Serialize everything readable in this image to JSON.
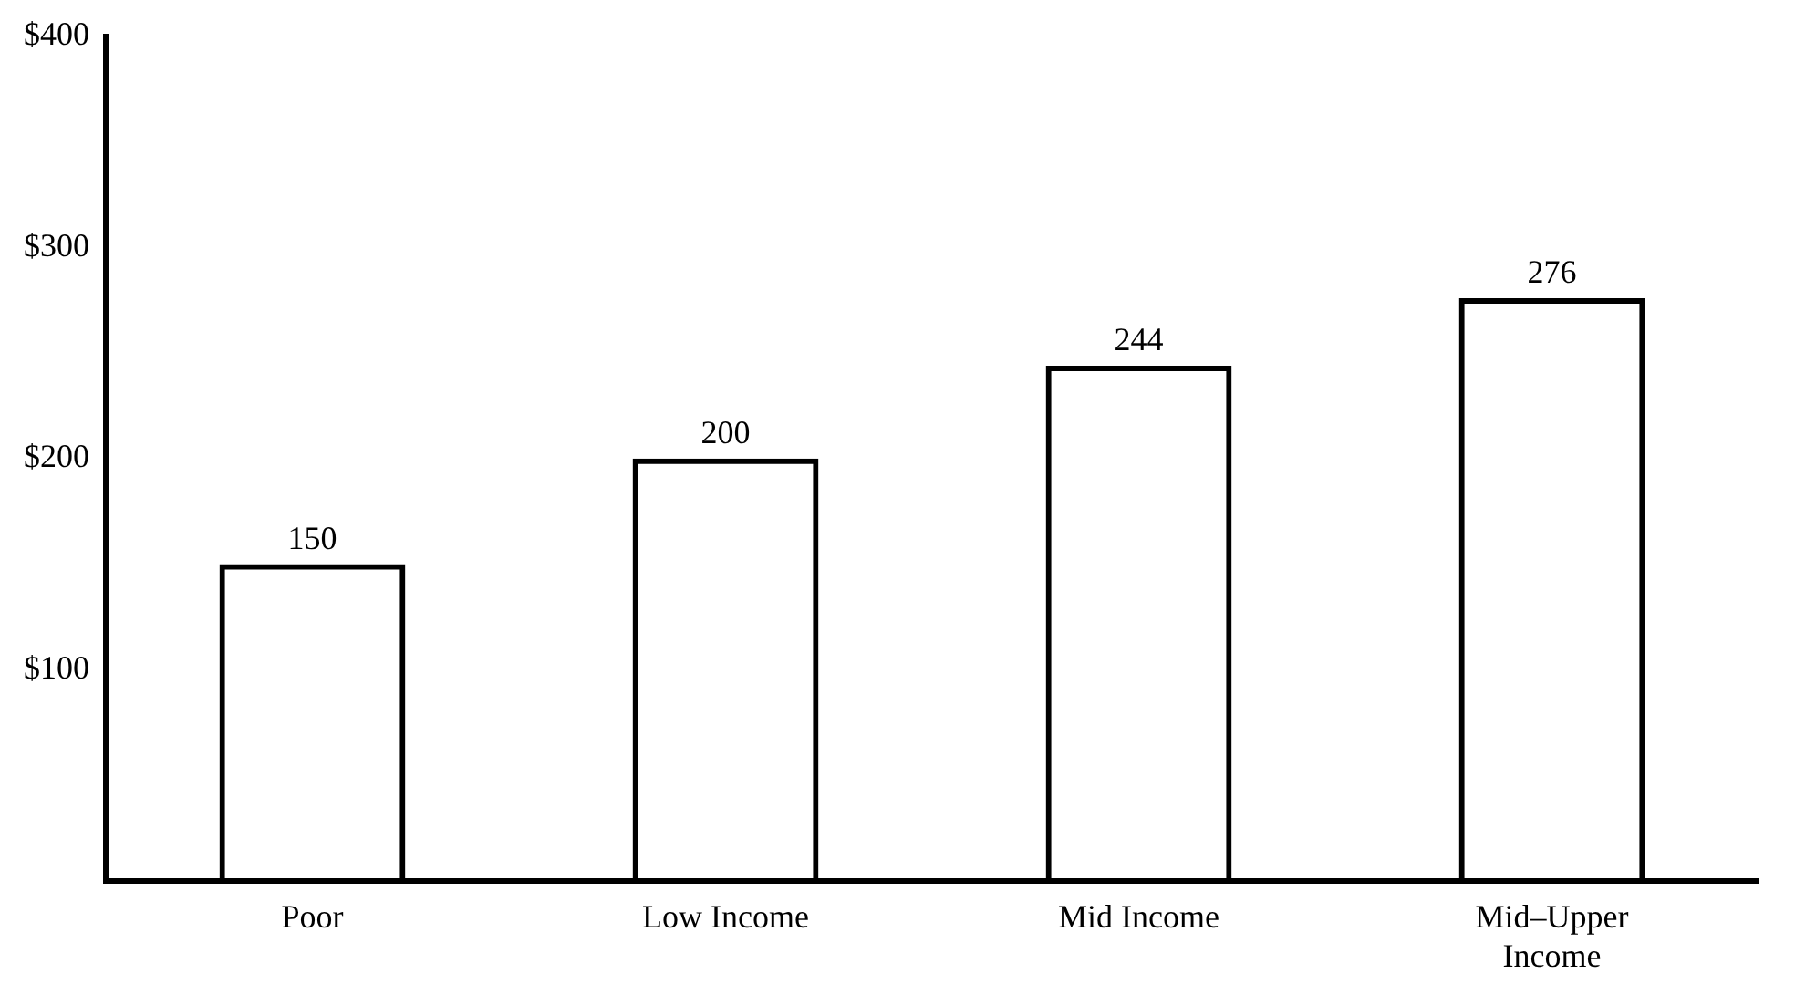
{
  "chart_data": {
    "type": "bar",
    "categories": [
      "Poor",
      "Low Income",
      "Mid Income",
      "Mid–Upper Income"
    ],
    "values": [
      150,
      200,
      244,
      276
    ],
    "color": "#000000",
    "ylim": [
      0,
      400
    ],
    "yticks": [
      {
        "value": 100,
        "label": "$100"
      },
      {
        "value": 200,
        "label": "$200"
      },
      {
        "value": 300,
        "label": "$300"
      },
      {
        "value": 400,
        "label": "$400"
      }
    ],
    "grid": false,
    "legend": false,
    "data_labels": true
  }
}
